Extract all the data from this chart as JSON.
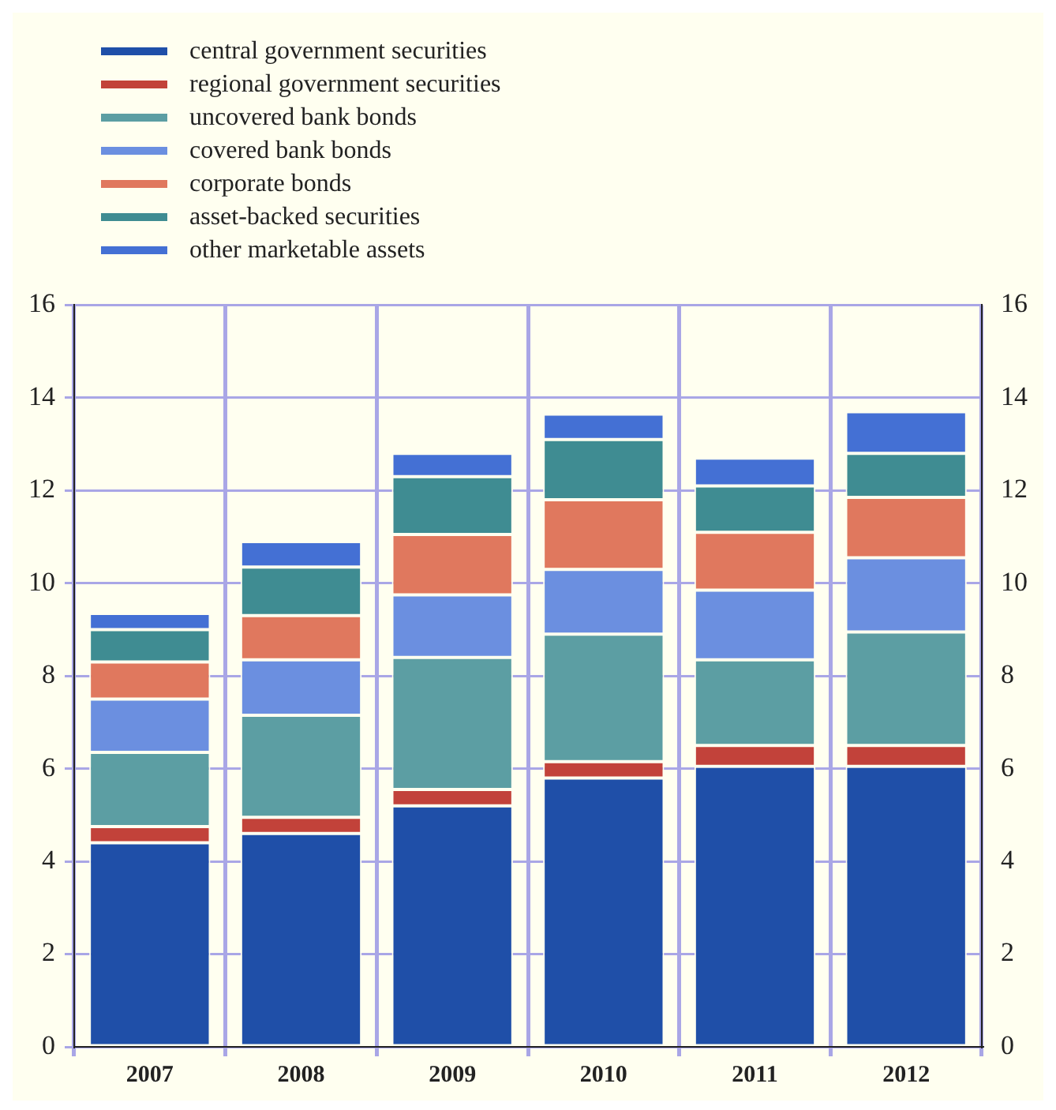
{
  "chart_data": {
    "type": "bar",
    "stacked": true,
    "categories": [
      "2007",
      "2008",
      "2009",
      "2010",
      "2011",
      "2012"
    ],
    "series": [
      {
        "name": "central government securities",
        "color": "#1f4fa8",
        "values": [
          4.4,
          4.6,
          5.2,
          5.8,
          6.05,
          6.05
        ]
      },
      {
        "name": "regional government securities",
        "color": "#c2423a",
        "values": [
          0.35,
          0.35,
          0.35,
          0.35,
          0.45,
          0.45
        ]
      },
      {
        "name": "uncovered bank bonds",
        "color": "#5c9ea3",
        "values": [
          1.6,
          2.2,
          2.85,
          2.75,
          1.85,
          2.45
        ]
      },
      {
        "name": "covered bank bonds",
        "color": "#6b8fe0",
        "values": [
          1.15,
          1.2,
          1.35,
          1.4,
          1.5,
          1.6
        ]
      },
      {
        "name": "corporate bonds",
        "color": "#e0785e",
        "values": [
          0.8,
          0.95,
          1.3,
          1.5,
          1.25,
          1.3
        ]
      },
      {
        "name": "asset-backed securities",
        "color": "#3f8c92",
        "values": [
          0.7,
          1.05,
          1.25,
          1.3,
          1.0,
          0.95
        ]
      },
      {
        "name": "other marketable assets",
        "color": "#4470d4",
        "values": [
          0.35,
          0.55,
          0.5,
          0.55,
          0.6,
          0.9
        ]
      }
    ],
    "ylim": [
      0,
      16
    ],
    "yticks": [
      0,
      2,
      4,
      6,
      8,
      10,
      12,
      14,
      16
    ],
    "y2lim": [
      0,
      16
    ],
    "y2ticks": [
      0,
      2,
      4,
      6,
      8,
      10,
      12,
      14,
      16
    ],
    "grid": true,
    "legend": "top left"
  }
}
